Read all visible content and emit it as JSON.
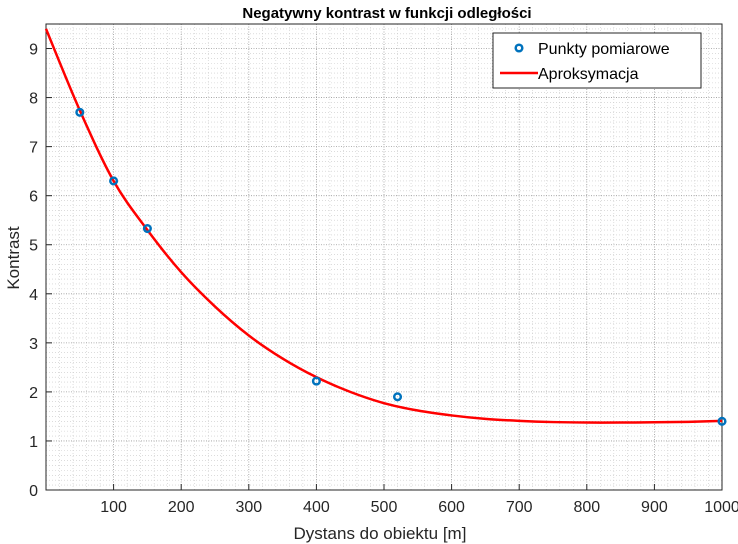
{
  "chart_data": {
    "type": "scatter",
    "title": "Negatywny kontrast w funkcji odległości",
    "xlabel": "Dystans do obiektu [m]",
    "ylabel": "Kontrast",
    "xlim": [
      0,
      1000
    ],
    "ylim": [
      0,
      9.5
    ],
    "xticks": [
      100,
      200,
      300,
      400,
      500,
      600,
      700,
      800,
      900,
      1000
    ],
    "yticks": [
      0,
      1,
      2,
      3,
      4,
      5,
      6,
      7,
      8,
      9
    ],
    "grid": true,
    "minor_grid": true,
    "legend_position": "top-right",
    "series": [
      {
        "name": "Punkty pomiarowe",
        "kind": "markers",
        "color": "#0072BD",
        "points": [
          {
            "x": 50,
            "y": 7.7
          },
          {
            "x": 100,
            "y": 6.3
          },
          {
            "x": 150,
            "y": 5.33
          },
          {
            "x": 400,
            "y": 2.22
          },
          {
            "x": 520,
            "y": 1.9
          },
          {
            "x": 1000,
            "y": 1.4
          }
        ]
      },
      {
        "name": "Aproksymacja",
        "kind": "line",
        "color": "#FF0000",
        "points": [
          {
            "x": 0,
            "y": 9.4
          },
          {
            "x": 50,
            "y": 7.74
          },
          {
            "x": 100,
            "y": 6.3
          },
          {
            "x": 150,
            "y": 5.3
          },
          {
            "x": 200,
            "y": 4.44
          },
          {
            "x": 250,
            "y": 3.74
          },
          {
            "x": 300,
            "y": 3.15
          },
          {
            "x": 350,
            "y": 2.68
          },
          {
            "x": 400,
            "y": 2.3
          },
          {
            "x": 450,
            "y": 2.0
          },
          {
            "x": 500,
            "y": 1.77
          },
          {
            "x": 550,
            "y": 1.62
          },
          {
            "x": 600,
            "y": 1.52
          },
          {
            "x": 650,
            "y": 1.45
          },
          {
            "x": 700,
            "y": 1.41
          },
          {
            "x": 750,
            "y": 1.385
          },
          {
            "x": 800,
            "y": 1.375
          },
          {
            "x": 850,
            "y": 1.375
          },
          {
            "x": 900,
            "y": 1.38
          },
          {
            "x": 950,
            "y": 1.39
          },
          {
            "x": 1000,
            "y": 1.41
          }
        ]
      }
    ]
  }
}
